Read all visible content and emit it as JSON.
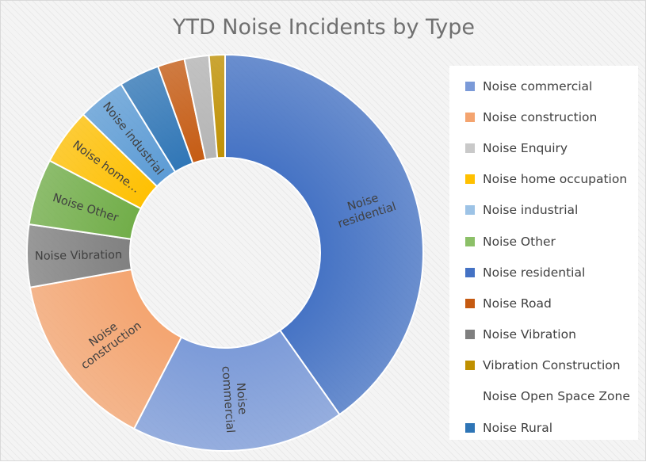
{
  "chart_data": {
    "type": "pie",
    "title": "YTD Noise Incidents by Type",
    "legend_position": "right",
    "donut": true,
    "slices": [
      {
        "name": "Noise residential",
        "value": 40.2,
        "color": "#4472c4",
        "label_lines": [
          "Noise",
          "residential"
        ]
      },
      {
        "name": "Noise commercial",
        "value": 17.4,
        "color": "#7b9ad8",
        "label_lines": [
          "Noise",
          "commercial"
        ]
      },
      {
        "name": "Noise construction",
        "value": 14.6,
        "color": "#f4a46f",
        "label_lines": [
          "Noise",
          "construction"
        ]
      },
      {
        "name": "Noise Vibration",
        "value": 5.1,
        "color": "#7f7f7f",
        "label_lines": [
          "Noise Vibration"
        ]
      },
      {
        "name": "Noise Other",
        "value": 5.4,
        "color": "#70ad47",
        "label_lines": [
          "Noise Other"
        ]
      },
      {
        "name": "Noise home occupation",
        "value": 4.6,
        "color": "#ffc000",
        "label_lines": [
          "Noise home…"
        ]
      },
      {
        "name": "Noise industrial",
        "value": 3.9,
        "color": "#5b9bd5",
        "label_lines": [
          "Noise industrial"
        ]
      },
      {
        "name": "Noise Rural",
        "value": 3.3,
        "color": "#2e75b6",
        "label_lines": []
      },
      {
        "name": "Noise Road",
        "value": 2.2,
        "color": "#c55a11",
        "label_lines": []
      },
      {
        "name": "Noise Enquiry",
        "value": 2.0,
        "color": "#b4b4b4",
        "label_lines": []
      },
      {
        "name": "Vibration Construction",
        "value": 1.3,
        "color": "#bf9000",
        "label_lines": []
      },
      {
        "name": "Noise Open Space Zone",
        "value": 0.0,
        "color": "#ffffff",
        "label_lines": []
      }
    ],
    "legend": [
      {
        "label": "Noise commercial",
        "color": "#7b9ad8"
      },
      {
        "label": "Noise construction",
        "color": "#f4a46f"
      },
      {
        "label": "Noise Enquiry",
        "color": "#c9c9c9"
      },
      {
        "label": "Noise home occupation",
        "color": "#ffc000"
      },
      {
        "label": "Noise industrial",
        "color": "#9dc3e6"
      },
      {
        "label": "Noise Other",
        "color": "#8cc068"
      },
      {
        "label": "Noise residential",
        "color": "#4472c4"
      },
      {
        "label": "Noise Road",
        "color": "#c55a11"
      },
      {
        "label": "Noise Vibration",
        "color": "#7f7f7f"
      },
      {
        "label": "Vibration Construction",
        "color": "#bf9000"
      },
      {
        "label": "Noise Open Space Zone",
        "color": ""
      },
      {
        "label": "Noise Rural",
        "color": "#2e75b6"
      }
    ]
  }
}
